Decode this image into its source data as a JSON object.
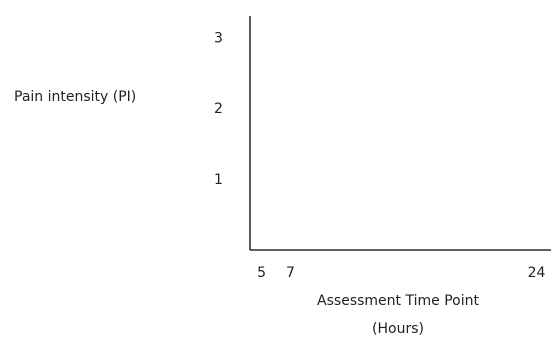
{
  "chart_data": {
    "type": "line",
    "ylabel": "Pain intensity (PI)",
    "xlabel_lines": [
      "Assessment Time Point",
      "(Hours)"
    ],
    "x_ticks": [
      5,
      7,
      24
    ],
    "y_ticks": [
      1,
      2,
      3
    ],
    "xlim": [
      4.2,
      25
    ],
    "ylim": [
      0,
      3.3
    ],
    "series": []
  }
}
